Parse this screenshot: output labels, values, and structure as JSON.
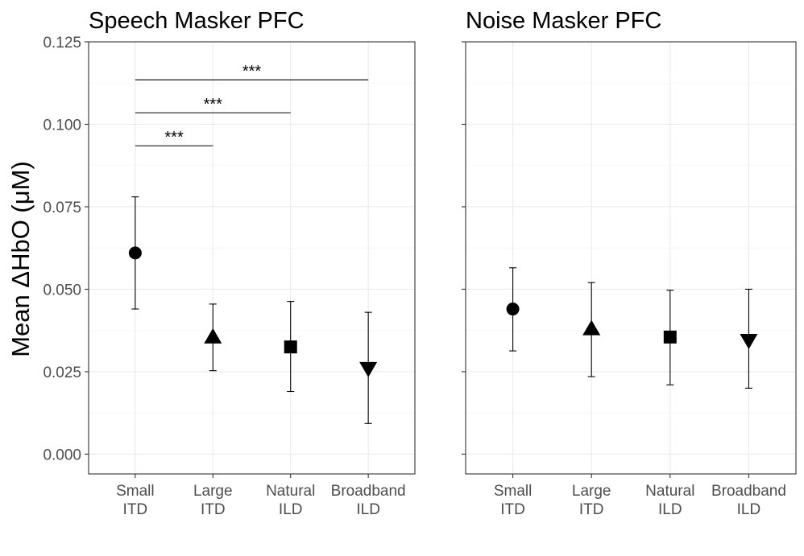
{
  "chart_data": {
    "type": "scatter",
    "ylabel": "Mean ΔHbO (μM)",
    "ylim": [
      -0.006,
      0.125
    ],
    "y_ticks": [
      "0.000",
      "0.025",
      "0.050",
      "0.075",
      "0.100",
      "0.125"
    ],
    "y_tick_values": [
      0,
      0.025,
      0.05,
      0.075,
      0.1,
      0.125
    ],
    "categories": [
      {
        "line1": "Small",
        "line2": "ITD",
        "marker": "circle"
      },
      {
        "line1": "Large",
        "line2": "ITD",
        "marker": "triangle-up"
      },
      {
        "line1": "Natural",
        "line2": "ILD",
        "marker": "square"
      },
      {
        "line1": "Broadband",
        "line2": "ILD",
        "marker": "triangle-down"
      }
    ],
    "grid": true,
    "panels": [
      {
        "title": "Speech Masker PFC",
        "mean": [
          0.061,
          0.0355,
          0.0325,
          0.026
        ],
        "lower": [
          0.044,
          0.0253,
          0.019,
          0.0093
        ],
        "upper": [
          0.078,
          0.0455,
          0.0463,
          0.043
        ],
        "significance": [
          {
            "from": 0,
            "to": 1,
            "y": 0.0935,
            "label": "***"
          },
          {
            "from": 0,
            "to": 2,
            "y": 0.1035,
            "label": "***"
          },
          {
            "from": 0,
            "to": 3,
            "y": 0.1135,
            "label": "***"
          }
        ]
      },
      {
        "title": "Noise Masker PFC",
        "mean": [
          0.044,
          0.038,
          0.0355,
          0.0345
        ],
        "lower": [
          0.0313,
          0.0235,
          0.021,
          0.02
        ],
        "upper": [
          0.0565,
          0.052,
          0.0497,
          0.05
        ],
        "significance": []
      }
    ]
  }
}
